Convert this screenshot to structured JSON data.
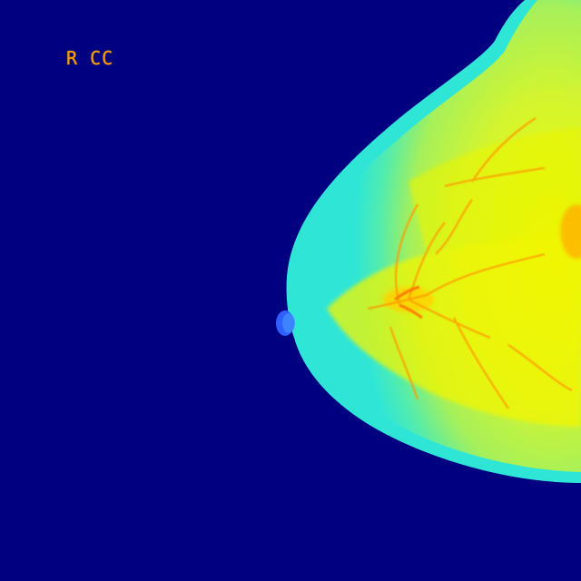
{
  "image": {
    "view_label": "R CC",
    "colors": {
      "background": "#000080",
      "edge": "#2fe6d6",
      "tissue": "#b8f542",
      "dense": "#ffee00",
      "hot": "#ff7a00",
      "nipple": "#2f5fff",
      "label": "#ff9a00"
    }
  }
}
